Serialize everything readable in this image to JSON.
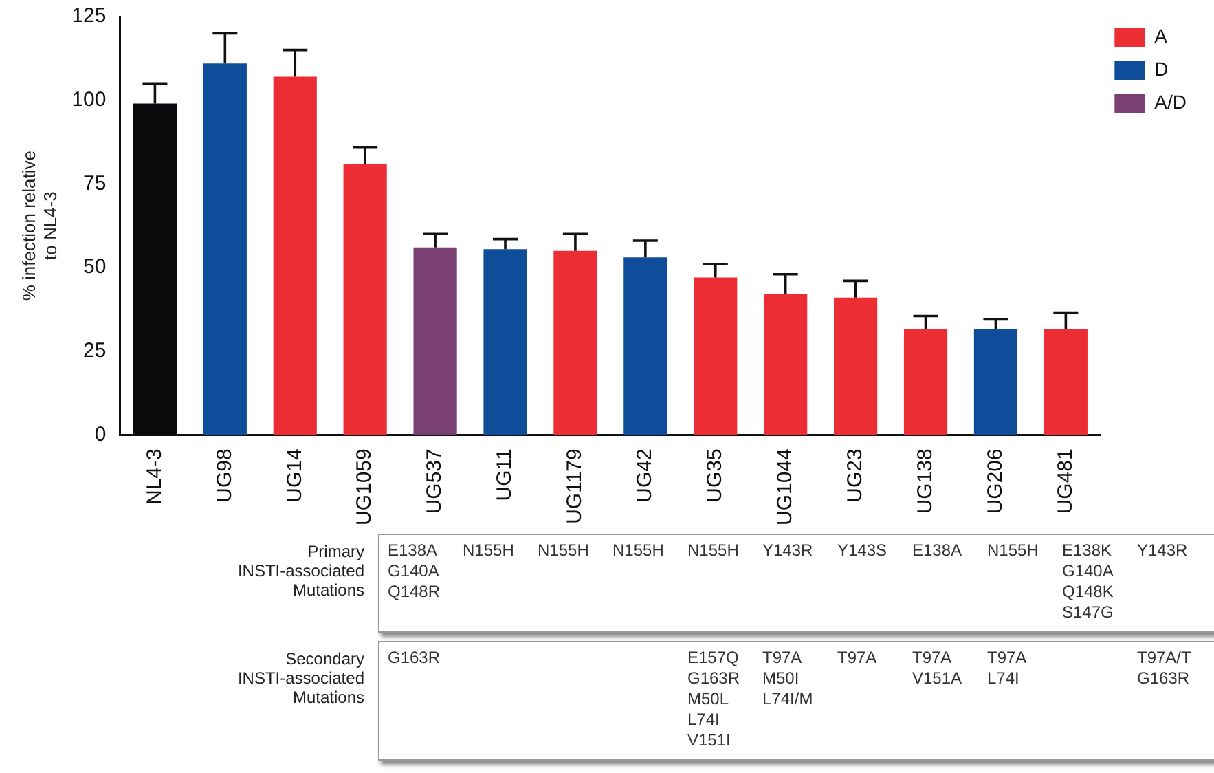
{
  "chart_data": {
    "type": "bar",
    "stacked": true,
    "ylabel": "% infection relative\nto NL4-3",
    "categories": [
      "NL4-3",
      "UG98",
      "UG14",
      "UG1059",
      "UG537",
      "UG11",
      "UG1179",
      "UG42",
      "UG35",
      "UG1044",
      "UG23",
      "UG138",
      "UG206",
      "UG481"
    ],
    "series": [
      {
        "color": "#0a0a0c",
        "values": [
          99,
          null,
          null,
          null,
          null,
          null,
          null,
          null,
          null,
          null,
          null,
          null,
          null,
          null
        ],
        "errors": [
          6,
          null,
          null,
          null,
          null,
          null,
          null,
          null,
          null,
          null,
          null,
          null,
          null,
          null
        ]
      },
      {
        "name": "A",
        "color": "#ec2d33",
        "values": [
          null,
          null,
          107,
          81,
          null,
          null,
          55,
          null,
          47,
          42,
          41,
          31.5,
          null,
          31.5
        ],
        "errors": [
          null,
          null,
          8,
          5,
          null,
          null,
          5,
          null,
          4,
          6,
          5,
          4,
          null,
          5
        ]
      },
      {
        "name": "D",
        "color": "#0f4c99",
        "values": [
          null,
          111,
          null,
          null,
          null,
          55.5,
          null,
          53,
          null,
          null,
          null,
          null,
          31.5,
          null
        ],
        "errors": [
          null,
          9,
          null,
          null,
          null,
          3,
          null,
          5,
          null,
          null,
          null,
          null,
          3,
          null
        ]
      },
      {
        "name": "A/D",
        "color": "#7a4074",
        "values": [
          null,
          null,
          null,
          null,
          56,
          null,
          null,
          null,
          null,
          null,
          null,
          null,
          null,
          null
        ],
        "errors": [
          null,
          null,
          null,
          null,
          4,
          null,
          null,
          null,
          null,
          null,
          null,
          null,
          null,
          null
        ]
      }
    ],
    "ylim": [
      0,
      125
    ],
    "yticks": [
      0,
      25,
      50,
      75,
      100,
      125
    ],
    "grid": false,
    "legend": "top right",
    "annotations": [
      "Primary\nINSTI-associated\nMutations",
      "E138A\nG140A\nQ148R",
      "N155H",
      "N155H",
      "N155H",
      "N155H",
      "Y143R",
      "Y143S",
      "E138A",
      "N155H",
      "E138K\nG140A\nQ148K\nS147G",
      "Y143R",
      "Secondary\nINSTI-associated\nMutations",
      "G163R",
      null,
      null,
      null,
      "E157Q\nG163R\nM50L\nL74I\nV151I",
      "T97A\nM50I\nL74I/M",
      "T97A",
      "T97A\nV151A",
      "T97A\nL74I",
      null,
      "T97A/T\nG163R"
    ]
  }
}
